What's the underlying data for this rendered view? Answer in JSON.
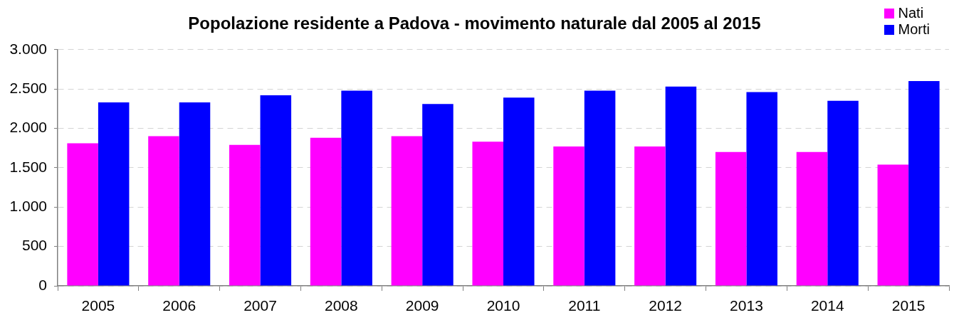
{
  "chart_data": {
    "type": "bar",
    "title": "Popolazione residente a Padova - movimento naturale dal 2005 al 2015",
    "categories": [
      "2005",
      "2006",
      "2007",
      "2008",
      "2009",
      "2010",
      "2011",
      "2012",
      "2013",
      "2014",
      "2015"
    ],
    "series": [
      {
        "name": "Nati",
        "color": "#ff00ff",
        "values": [
          1810,
          1900,
          1790,
          1880,
          1900,
          1830,
          1770,
          1770,
          1700,
          1700,
          1540
        ]
      },
      {
        "name": "Morti",
        "color": "#0000ff",
        "values": [
          2330,
          2330,
          2420,
          2480,
          2310,
          2390,
          2480,
          2530,
          2460,
          2350,
          2600
        ]
      }
    ],
    "ylim": [
      0,
      3000
    ],
    "yticks": [
      0,
      500,
      {
        "value": 1000,
        "label": "1.000"
      },
      {
        "value": 1500,
        "label": "1.500"
      },
      {
        "value": 2000,
        "label": "2.000"
      },
      {
        "value": 2500,
        "label": "2.500"
      },
      {
        "value": 3000,
        "label": "3.000"
      }
    ],
    "grid": "y",
    "legend": "top right"
  }
}
